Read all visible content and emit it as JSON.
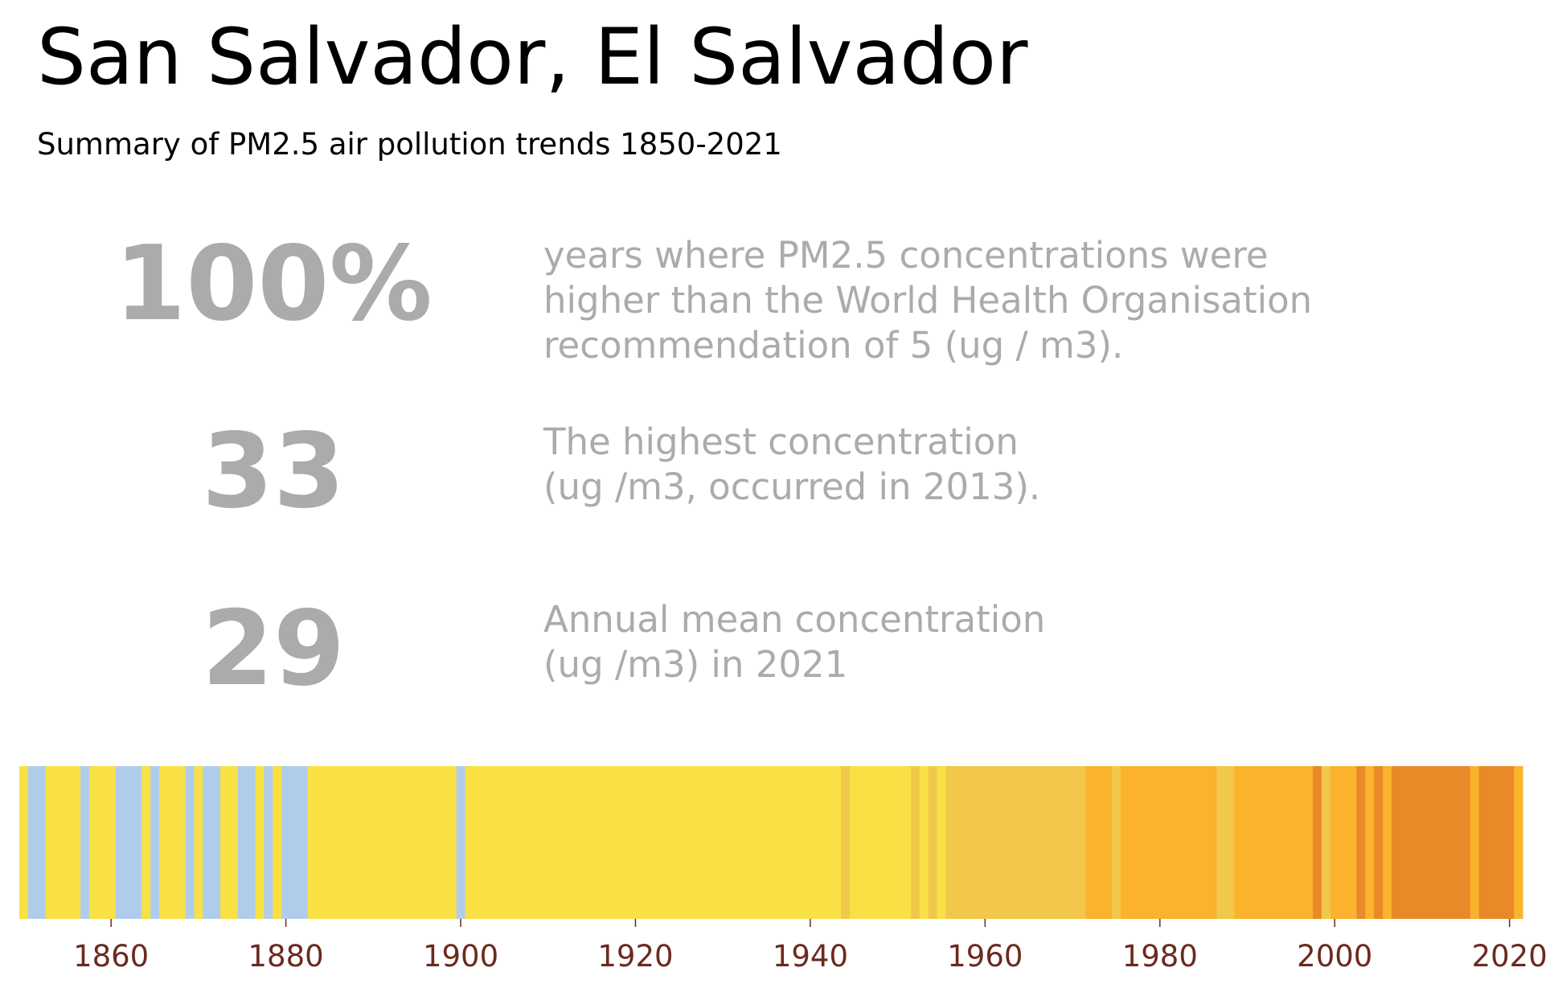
{
  "header": {
    "title": "San Salvador, El Salvador",
    "subtitle": "Summary of PM2.5 air pollution trends 1850-2021"
  },
  "stats": [
    {
      "value": "100%",
      "lines": [
        "years where PM2.5 concentrations were",
        "higher than the World Health Organisation",
        "recommendation of 5 (ug / m3)."
      ]
    },
    {
      "value": "33",
      "lines": [
        "The highest concentration",
        "(ug /m3, occurred in 2013)."
      ]
    },
    {
      "value": "29",
      "lines": [
        "Annual mean concentration",
        "(ug /m3) in 2021"
      ]
    }
  ],
  "chart_data": {
    "type": "heatmap",
    "x_range": [
      1850,
      2021
    ],
    "x_ticks": [
      "1860",
      "1880",
      "1900",
      "1920",
      "1940",
      "1960",
      "1980",
      "2000",
      "2020"
    ],
    "colors": {
      "blue": "#afcdeb",
      "yellow": "#f8e045",
      "gold": "#f2c84b",
      "orange": "#fbb22c",
      "dark": "#ea8928",
      "tick": "#6b2a1e"
    },
    "segments": [
      {
        "start": 1850,
        "end": 1850,
        "color": "yellow"
      },
      {
        "start": 1851,
        "end": 1852,
        "color": "blue"
      },
      {
        "start": 1853,
        "end": 1856,
        "color": "yellow"
      },
      {
        "start": 1857,
        "end": 1857,
        "color": "blue"
      },
      {
        "start": 1858,
        "end": 1860,
        "color": "yellow"
      },
      {
        "start": 1861,
        "end": 1863,
        "color": "blue"
      },
      {
        "start": 1864,
        "end": 1864,
        "color": "yellow"
      },
      {
        "start": 1865,
        "end": 1865,
        "color": "blue"
      },
      {
        "start": 1866,
        "end": 1868,
        "color": "yellow"
      },
      {
        "start": 1869,
        "end": 1869,
        "color": "blue"
      },
      {
        "start": 1870,
        "end": 1870,
        "color": "yellow"
      },
      {
        "start": 1871,
        "end": 1872,
        "color": "blue"
      },
      {
        "start": 1873,
        "end": 1874,
        "color": "yellow"
      },
      {
        "start": 1875,
        "end": 1876,
        "color": "blue"
      },
      {
        "start": 1877,
        "end": 1877,
        "color": "yellow"
      },
      {
        "start": 1878,
        "end": 1878,
        "color": "blue"
      },
      {
        "start": 1879,
        "end": 1879,
        "color": "yellow"
      },
      {
        "start": 1880,
        "end": 1882,
        "color": "blue"
      },
      {
        "start": 1883,
        "end": 1899,
        "color": "yellow"
      },
      {
        "start": 1900,
        "end": 1900,
        "color": "blue"
      },
      {
        "start": 1901,
        "end": 1943,
        "color": "yellow"
      },
      {
        "start": 1944,
        "end": 1944,
        "color": "gold"
      },
      {
        "start": 1945,
        "end": 1951,
        "color": "yellow"
      },
      {
        "start": 1952,
        "end": 1952,
        "color": "gold"
      },
      {
        "start": 1953,
        "end": 1953,
        "color": "yellow"
      },
      {
        "start": 1954,
        "end": 1954,
        "color": "gold"
      },
      {
        "start": 1955,
        "end": 1955,
        "color": "yellow"
      },
      {
        "start": 1956,
        "end": 1971,
        "color": "gold"
      },
      {
        "start": 1972,
        "end": 1974,
        "color": "orange"
      },
      {
        "start": 1975,
        "end": 1975,
        "color": "gold"
      },
      {
        "start": 1976,
        "end": 1986,
        "color": "orange"
      },
      {
        "start": 1987,
        "end": 1988,
        "color": "gold"
      },
      {
        "start": 1989,
        "end": 1997,
        "color": "orange"
      },
      {
        "start": 1998,
        "end": 1998,
        "color": "dark"
      },
      {
        "start": 1999,
        "end": 1999,
        "color": "gold"
      },
      {
        "start": 2000,
        "end": 2002,
        "color": "orange"
      },
      {
        "start": 2003,
        "end": 2003,
        "color": "dark"
      },
      {
        "start": 2004,
        "end": 2004,
        "color": "orange"
      },
      {
        "start": 2005,
        "end": 2005,
        "color": "dark"
      },
      {
        "start": 2006,
        "end": 2006,
        "color": "orange"
      },
      {
        "start": 2007,
        "end": 2015,
        "color": "dark"
      },
      {
        "start": 2016,
        "end": 2016,
        "color": "orange"
      },
      {
        "start": 2017,
        "end": 2020,
        "color": "dark"
      },
      {
        "start": 2021,
        "end": 2021,
        "color": "orange"
      }
    ]
  }
}
